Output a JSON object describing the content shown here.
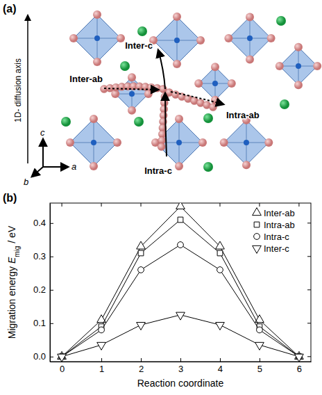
{
  "panel_a": {
    "label": "(a)",
    "axis_label": "1D- diffusion axis",
    "paths": [
      "Inter-c",
      "Inter-ab",
      "Intra-ab",
      "Intra-c"
    ],
    "axes": [
      "c",
      "b",
      "a"
    ]
  },
  "chart_data": {
    "type": "line",
    "panel_label": "(b)",
    "xlabel": "Reaction coordinate",
    "ylabel": [
      "Migration energy ",
      "E",
      "mig",
      " / eV"
    ],
    "x": [
      0,
      1,
      2,
      3,
      4,
      5,
      6
    ],
    "xlim": [
      -0.3,
      6.3
    ],
    "xticks": [
      0,
      1,
      2,
      3,
      4,
      5,
      6
    ],
    "ylim": [
      -0.015,
      0.46
    ],
    "yticks": [
      {
        "value": 0,
        "label": "0.0"
      },
      0.1,
      0.2,
      0.3,
      0.4
    ],
    "legend": "upper-right",
    "series": [
      {
        "name": "Inter-ab",
        "color": "#000000",
        "marker": "triangle-up",
        "values": [
          0,
          0.11,
          0.33,
          0.45,
          0.33,
          0.11,
          0
        ]
      },
      {
        "name": "Intra-ab",
        "color": "#000000",
        "marker": "square",
        "values": [
          0,
          0.09,
          0.31,
          0.41,
          0.31,
          0.09,
          0
        ]
      },
      {
        "name": "Intra-c",
        "color": "#000000",
        "marker": "circle",
        "values": [
          0,
          0.08,
          0.26,
          0.335,
          0.26,
          0.08,
          0
        ]
      },
      {
        "name": "Inter-c",
        "color": "#000000",
        "marker": "triangle-down",
        "values": [
          0,
          0.035,
          0.095,
          0.125,
          0.095,
          0.035,
          0
        ]
      }
    ]
  }
}
